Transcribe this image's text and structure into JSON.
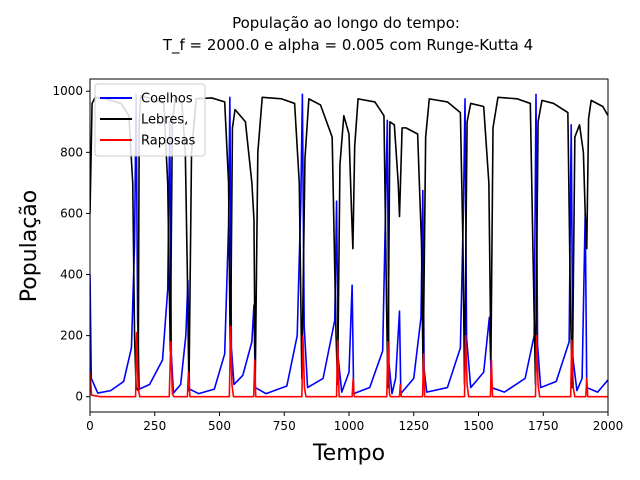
{
  "chart_data": {
    "type": "line",
    "title": "População ao longo do tempo:",
    "subtitle": "T_f = 2000.0 e alpha = 0.005 com Runge-Kutta 4",
    "xlabel": "Tempo",
    "ylabel": "População",
    "xlim": [
      0,
      2000
    ],
    "ylim": [
      -50,
      1040
    ],
    "x_ticks": [
      0,
      250,
      500,
      750,
      1000,
      1250,
      1500,
      1750,
      2000
    ],
    "y_ticks": [
      0,
      200,
      400,
      600,
      800,
      1000
    ],
    "grid": false,
    "legend_position": "top-left",
    "series": [
      {
        "name": "Coelhos",
        "color": "#0000ff",
        "points": [
          [
            0,
            400
          ],
          [
            5,
            60
          ],
          [
            30,
            12
          ],
          [
            80,
            20
          ],
          [
            130,
            50
          ],
          [
            160,
            160
          ],
          [
            172,
            500
          ],
          [
            178,
            990
          ],
          [
            184,
            250
          ],
          [
            190,
            25
          ],
          [
            230,
            40
          ],
          [
            280,
            120
          ],
          [
            300,
            350
          ],
          [
            308,
            900
          ],
          [
            314,
            140
          ],
          [
            322,
            12
          ],
          [
            350,
            40
          ],
          [
            370,
            200
          ],
          [
            378,
            380
          ],
          [
            384,
            25
          ],
          [
            420,
            10
          ],
          [
            480,
            25
          ],
          [
            520,
            140
          ],
          [
            535,
            560
          ],
          [
            540,
            980
          ],
          [
            546,
            160
          ],
          [
            556,
            40
          ],
          [
            590,
            70
          ],
          [
            625,
            180
          ],
          [
            633,
            300
          ],
          [
            638,
            30
          ],
          [
            680,
            10
          ],
          [
            760,
            35
          ],
          [
            800,
            200
          ],
          [
            814,
            640
          ],
          [
            820,
            990
          ],
          [
            827,
            230
          ],
          [
            840,
            30
          ],
          [
            900,
            60
          ],
          [
            945,
            250
          ],
          [
            952,
            640
          ],
          [
            958,
            130
          ],
          [
            972,
            15
          ],
          [
            1000,
            80
          ],
          [
            1012,
            365
          ],
          [
            1018,
            10
          ],
          [
            1080,
            30
          ],
          [
            1130,
            150
          ],
          [
            1142,
            650
          ],
          [
            1148,
            905
          ],
          [
            1154,
            110
          ],
          [
            1166,
            10
          ],
          [
            1180,
            60
          ],
          [
            1195,
            280
          ],
          [
            1200,
            10
          ],
          [
            1250,
            60
          ],
          [
            1278,
            260
          ],
          [
            1285,
            675
          ],
          [
            1290,
            90
          ],
          [
            1300,
            15
          ],
          [
            1380,
            30
          ],
          [
            1430,
            160
          ],
          [
            1442,
            620
          ],
          [
            1448,
            975
          ],
          [
            1454,
            190
          ],
          [
            1470,
            30
          ],
          [
            1520,
            80
          ],
          [
            1542,
            260
          ],
          [
            1550,
            30
          ],
          [
            1600,
            15
          ],
          [
            1680,
            60
          ],
          [
            1715,
            200
          ],
          [
            1722,
            990
          ],
          [
            1728,
            170
          ],
          [
            1740,
            30
          ],
          [
            1800,
            50
          ],
          [
            1850,
            180
          ],
          [
            1858,
            890
          ],
          [
            1864,
            130
          ],
          [
            1880,
            20
          ],
          [
            1900,
            60
          ],
          [
            1912,
            600
          ],
          [
            1918,
            30
          ],
          [
            1960,
            15
          ],
          [
            2000,
            55
          ]
        ]
      },
      {
        "name": "Lebres,",
        "color": "#000000",
        "points": [
          [
            0,
            600
          ],
          [
            8,
            960
          ],
          [
            20,
            980
          ],
          [
            60,
            975
          ],
          [
            120,
            960
          ],
          [
            150,
            920
          ],
          [
            165,
            700
          ],
          [
            172,
            200
          ],
          [
            178,
            30
          ],
          [
            186,
            20
          ],
          [
            190,
            900
          ],
          [
            196,
            985
          ],
          [
            240,
            975
          ],
          [
            285,
            960
          ],
          [
            300,
            700
          ],
          [
            310,
            150
          ],
          [
            318,
            900
          ],
          [
            330,
            985
          ],
          [
            355,
            960
          ],
          [
            368,
            800
          ],
          [
            376,
            400
          ],
          [
            382,
            20
          ],
          [
            392,
            800
          ],
          [
            410,
            975
          ],
          [
            470,
            978
          ],
          [
            520,
            965
          ],
          [
            535,
            700
          ],
          [
            542,
            100
          ],
          [
            550,
            880
          ],
          [
            560,
            940
          ],
          [
            600,
            900
          ],
          [
            625,
            700
          ],
          [
            633,
            580
          ],
          [
            638,
            50
          ],
          [
            648,
            800
          ],
          [
            665,
            980
          ],
          [
            740,
            975
          ],
          [
            790,
            960
          ],
          [
            808,
            700
          ],
          [
            818,
            60
          ],
          [
            830,
            780
          ],
          [
            845,
            975
          ],
          [
            890,
            955
          ],
          [
            935,
            850
          ],
          [
            950,
            200
          ],
          [
            956,
            40
          ],
          [
            965,
            760
          ],
          [
            980,
            920
          ],
          [
            1000,
            860
          ],
          [
            1010,
            600
          ],
          [
            1015,
            485
          ],
          [
            1022,
            820
          ],
          [
            1035,
            975
          ],
          [
            1100,
            965
          ],
          [
            1135,
            920
          ],
          [
            1145,
            300
          ],
          [
            1150,
            30
          ],
          [
            1158,
            900
          ],
          [
            1175,
            890
          ],
          [
            1190,
            700
          ],
          [
            1195,
            590
          ],
          [
            1205,
            880
          ],
          [
            1220,
            880
          ],
          [
            1265,
            860
          ],
          [
            1280,
            500
          ],
          [
            1286,
            80
          ],
          [
            1296,
            850
          ],
          [
            1310,
            975
          ],
          [
            1380,
            965
          ],
          [
            1430,
            930
          ],
          [
            1440,
            500
          ],
          [
            1446,
            40
          ],
          [
            1456,
            900
          ],
          [
            1470,
            960
          ],
          [
            1520,
            950
          ],
          [
            1540,
            700
          ],
          [
            1548,
            120
          ],
          [
            1556,
            880
          ],
          [
            1575,
            980
          ],
          [
            1650,
            975
          ],
          [
            1700,
            960
          ],
          [
            1712,
            400
          ],
          [
            1720,
            40
          ],
          [
            1730,
            900
          ],
          [
            1745,
            970
          ],
          [
            1790,
            960
          ],
          [
            1845,
            930
          ],
          [
            1855,
            300
          ],
          [
            1862,
            30
          ],
          [
            1872,
            850
          ],
          [
            1890,
            890
          ],
          [
            1905,
            800
          ],
          [
            1912,
            600
          ],
          [
            1918,
            485
          ],
          [
            1925,
            910
          ],
          [
            1935,
            970
          ],
          [
            1980,
            950
          ],
          [
            2000,
            920
          ]
        ]
      },
      {
        "name": "Raposas",
        "color": "#ff0000",
        "points": [
          [
            0,
            80
          ],
          [
            6,
            5
          ],
          [
            40,
            0
          ],
          [
            176,
            0
          ],
          [
            180,
            210
          ],
          [
            186,
            30
          ],
          [
            192,
            0
          ],
          [
            306,
            0
          ],
          [
            312,
            180
          ],
          [
            318,
            10
          ],
          [
            324,
            0
          ],
          [
            376,
            0
          ],
          [
            380,
            80
          ],
          [
            386,
            0
          ],
          [
            538,
            0
          ],
          [
            543,
            230
          ],
          [
            548,
            40
          ],
          [
            554,
            0
          ],
          [
            632,
            0
          ],
          [
            636,
            120
          ],
          [
            640,
            0
          ],
          [
            818,
            0
          ],
          [
            822,
            200
          ],
          [
            828,
            30
          ],
          [
            834,
            0
          ],
          [
            952,
            0
          ],
          [
            956,
            185
          ],
          [
            962,
            0
          ],
          [
            1012,
            0
          ],
          [
            1016,
            60
          ],
          [
            1020,
            0
          ],
          [
            1146,
            0
          ],
          [
            1150,
            180
          ],
          [
            1156,
            10
          ],
          [
            1160,
            0
          ],
          [
            1195,
            0
          ],
          [
            1198,
            40
          ],
          [
            1202,
            0
          ],
          [
            1284,
            0
          ],
          [
            1288,
            140
          ],
          [
            1292,
            0
          ],
          [
            1446,
            0
          ],
          [
            1450,
            200
          ],
          [
            1456,
            40
          ],
          [
            1462,
            0
          ],
          [
            1546,
            0
          ],
          [
            1550,
            120
          ],
          [
            1554,
            0
          ],
          [
            1720,
            0
          ],
          [
            1724,
            200
          ],
          [
            1730,
            40
          ],
          [
            1736,
            0
          ],
          [
            1856,
            0
          ],
          [
            1860,
            185
          ],
          [
            1866,
            30
          ],
          [
            1872,
            0
          ],
          [
            1914,
            0
          ],
          [
            1918,
            60
          ],
          [
            1922,
            0
          ],
          [
            2000,
            0
          ]
        ]
      }
    ]
  }
}
